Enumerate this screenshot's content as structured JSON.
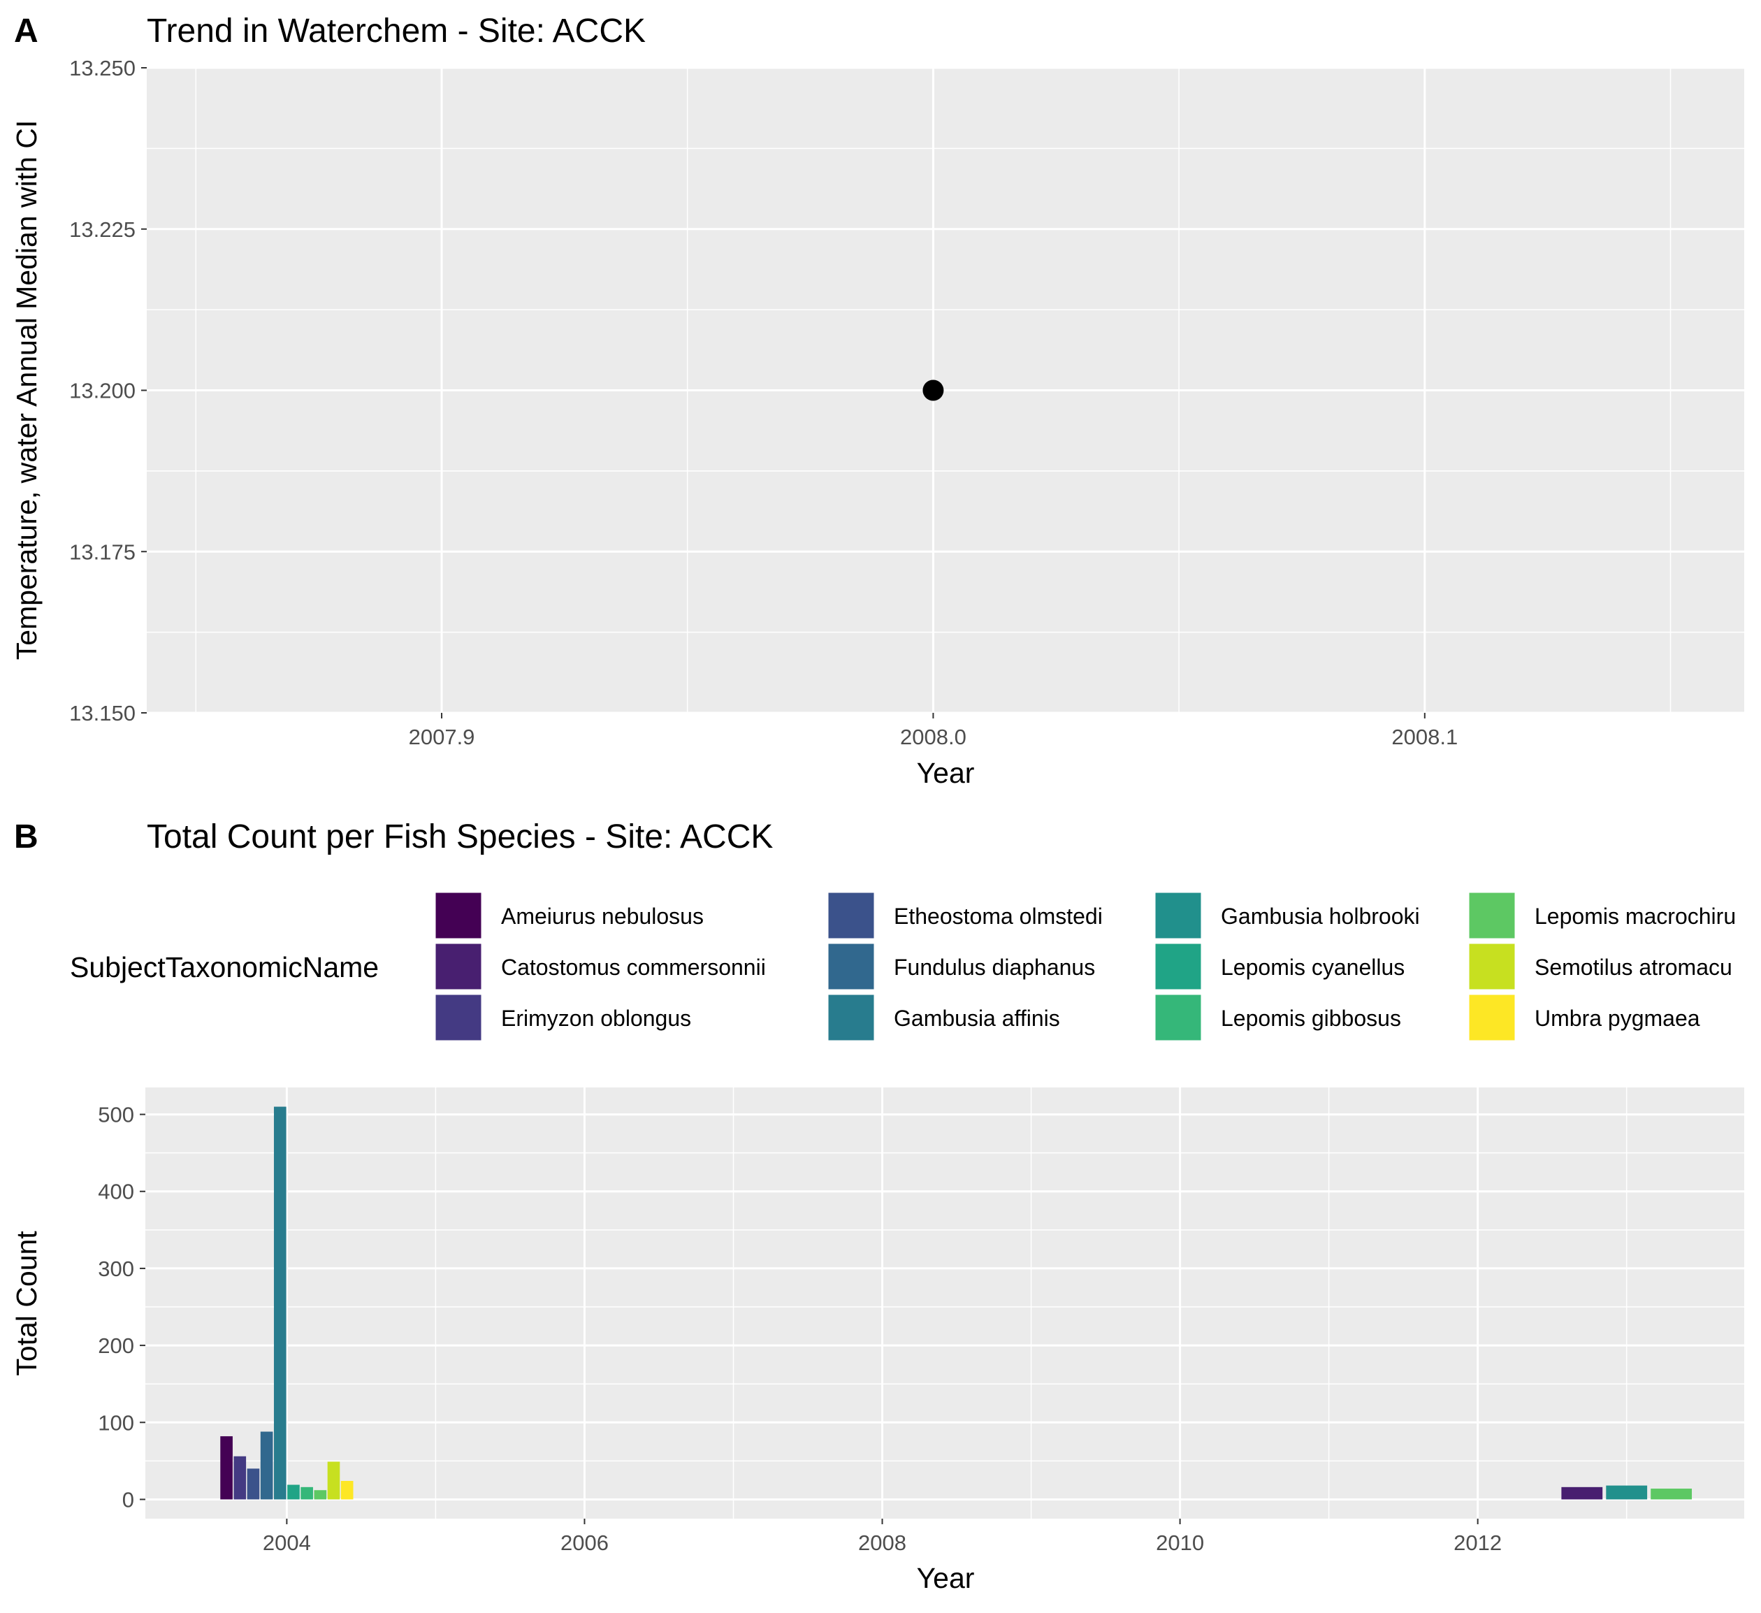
{
  "chart_data": [
    {
      "panel": "A",
      "type": "scatter",
      "title": "Trend in Waterchem - Site: ACCK",
      "xlabel": "Year",
      "ylabel": "Temperature, water Annual Median with CI",
      "xlim": [
        2007.84,
        2008.165
      ],
      "ylim": [
        13.15,
        13.25
      ],
      "xticks": [
        "2007.9",
        "2008.0",
        "2008.1"
      ],
      "xtick_values": [
        2007.9,
        2008.0,
        2008.1
      ],
      "yticks": [
        "13.150",
        "13.175",
        "13.200",
        "13.225",
        "13.250"
      ],
      "ytick_values": [
        13.15,
        13.175,
        13.2,
        13.225,
        13.25
      ],
      "points": [
        {
          "x": 2008.0,
          "y": 13.2
        }
      ],
      "point_color": "#000000",
      "grid": true
    },
    {
      "panel": "B",
      "type": "bar",
      "title": "Total Count per Fish Species - Site: ACCK",
      "xlabel": "Year",
      "ylabel": "Total Count",
      "legend_title": "SubjectTaxonomicName",
      "legend_position": "top",
      "xlim": [
        2003.05,
        2013.79
      ],
      "ylim": [
        -25,
        535
      ],
      "xticks": [
        "2004",
        "2006",
        "2008",
        "2010",
        "2012"
      ],
      "xtick_values": [
        2004,
        2006,
        2008,
        2010,
        2012
      ],
      "yticks": [
        "0",
        "100",
        "200",
        "300",
        "400",
        "500"
      ],
      "ytick_values": [
        0,
        100,
        200,
        300,
        400,
        500
      ],
      "grid": true,
      "species": [
        {
          "name": "Ameiurus nebulosus",
          "color": "#440154"
        },
        {
          "name": "Catostomus commersonnii",
          "color": "#481F70"
        },
        {
          "name": "Erimyzon oblongus",
          "color": "#443A83"
        },
        {
          "name": "Etheostoma olmstedi",
          "color": "#3B528B"
        },
        {
          "name": "Fundulus diaphanus",
          "color": "#31688E"
        },
        {
          "name": "Gambusia affinis",
          "color": "#287C8E"
        },
        {
          "name": "Gambusia holbrooki",
          "color": "#21908C"
        },
        {
          "name": "Lepomis cyanellus",
          "color": "#20A486"
        },
        {
          "name": "Lepomis gibbosus",
          "color": "#35B779"
        },
        {
          "name": "Lepomis macrochirus",
          "color": "#5DC863"
        },
        {
          "name": "Semotilus atromaculatus",
          "color": "#8FD744"
        },
        {
          "name": "Umbra pygmaea",
          "color": "#C7E020"
        }
      ],
      "bars": [
        {
          "year": 2004,
          "series": [
            {
              "species": "Ameiurus nebulosus",
              "value": 82,
              "color": "#440154"
            },
            {
              "species": "Erimyzon oblongus",
              "value": 56,
              "color": "#443A83"
            },
            {
              "species": "Etheostoma olmstedi",
              "value": 40,
              "color": "#3B528B"
            },
            {
              "species": "Fundulus diaphanus",
              "value": 88,
              "color": "#31688E"
            },
            {
              "species": "Gambusia affinis",
              "value": 510,
              "color": "#287C8E"
            },
            {
              "species": "Lepomis cyanellus",
              "value": 19,
              "color": "#20A486"
            },
            {
              "species": "Lepomis gibbosus",
              "value": 16,
              "color": "#35B779"
            },
            {
              "species": "Lepomis macrochirus",
              "value": 12,
              "color": "#5DC863"
            },
            {
              "species": "Semotilus atromaculatus",
              "value": 49,
              "color": "#C7E020"
            },
            {
              "species": "Umbra pygmaea",
              "value": 24,
              "color": "#FDE725"
            }
          ]
        },
        {
          "year": 2013,
          "series": [
            {
              "species": "Catostomus commersonnii",
              "value": 16,
              "color": "#481F70"
            },
            {
              "species": "Gambusia holbrooki",
              "value": 18,
              "color": "#21908C"
            },
            {
              "species": "Lepomis gibbosus",
              "value": 14,
              "color": "#5DC863"
            }
          ]
        }
      ]
    }
  ],
  "legend_items": [
    {
      "label": "Ameiurus nebulosus",
      "color": "#440154"
    },
    {
      "label": "Catostomus commersonnii",
      "color": "#481F70"
    },
    {
      "label": "Erimyzon oblongus",
      "color": "#443A83"
    },
    {
      "label": "Etheostoma olmstedi",
      "color": "#3B528B"
    },
    {
      "label": "Fundulus diaphanus",
      "color": "#31688E"
    },
    {
      "label": "Gambusia affinis",
      "color": "#287C8E"
    },
    {
      "label": "Gambusia holbrooki",
      "color": "#21908C"
    },
    {
      "label": "Lepomis cyanellus",
      "color": "#20A486"
    },
    {
      "label": "Lepomis gibbosus",
      "color": "#35B779"
    },
    {
      "label": "Lepomis macrochiru",
      "color": "#5DC863"
    },
    {
      "label": "Semotilus atromacu",
      "color": "#C7E020"
    },
    {
      "label": "Umbra pygmaea",
      "color": "#FDE725"
    }
  ],
  "colors": {
    "panel_background": "#EBEBEB",
    "grid_major": "#FFFFFF",
    "grid_minor": "#F5F5F5",
    "tick_text": "#4D4D4D"
  }
}
